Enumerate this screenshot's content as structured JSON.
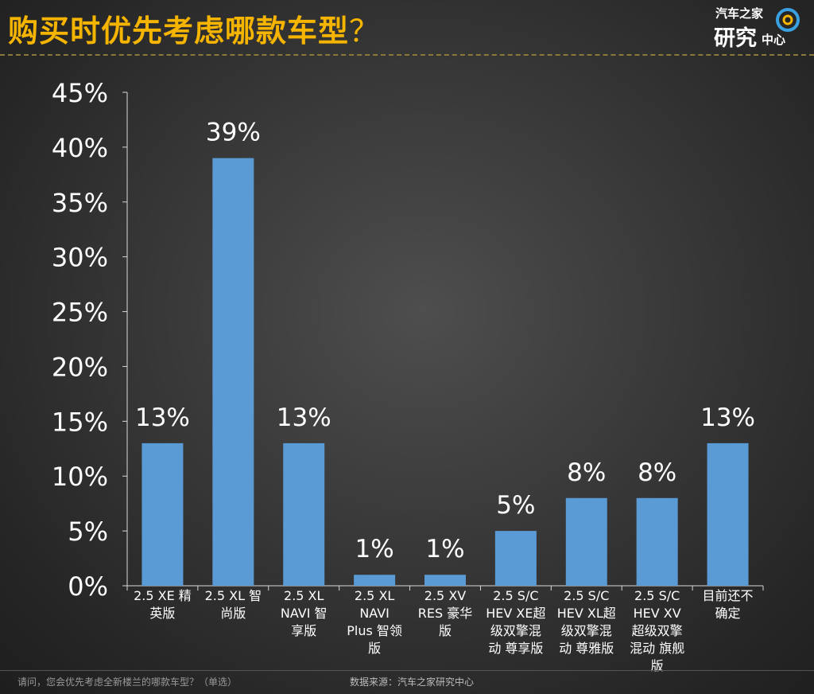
{
  "header": {
    "title": "购买时优先考虑哪款车型",
    "title_mark": "？"
  },
  "logo": {
    "line1": "汽车之家",
    "line2": "研究",
    "line3": "中心"
  },
  "footer": {
    "question": "请问，您会优先考虑全新楼兰的哪款车型？（单选）",
    "source": "数据来源：汽车之家研究中心"
  },
  "colors": {
    "bar": "#5b9bd5",
    "title": "#f5b400",
    "text": "#ffffff"
  },
  "chart_data": {
    "type": "bar",
    "title": "",
    "xlabel": "",
    "ylabel": "",
    "ylim": [
      0,
      45
    ],
    "y_ticks": [
      "0%",
      "5%",
      "10%",
      "15%",
      "20%",
      "25%",
      "30%",
      "35%",
      "40%",
      "45%"
    ],
    "grid": false,
    "categories": [
      [
        "2.5 XE 精",
        "英版"
      ],
      [
        "2.5 XL 智",
        "尚版"
      ],
      [
        "2.5 XL",
        "NAVI 智",
        "享版"
      ],
      [
        "2.5 XL",
        "NAVI",
        "Plus 智领",
        "版"
      ],
      [
        "2.5 XV",
        "RES 豪华",
        "版"
      ],
      [
        "2.5 S/C",
        "HEV XE超",
        "级双擎混",
        "动 尊享版"
      ],
      [
        "2.5 S/C",
        "HEV XL超",
        "级双擎混",
        "动 尊雅版"
      ],
      [
        "2.5 S/C",
        "HEV XV",
        "超级双擎",
        "混动 旗舰",
        "版"
      ],
      [
        "目前还不",
        "确定"
      ]
    ],
    "values": [
      13,
      39,
      13,
      1,
      1,
      5,
      8,
      8,
      13
    ],
    "data_labels": [
      "13%",
      "39%",
      "13%",
      "1%",
      "1%",
      "5%",
      "8%",
      "8%",
      "13%"
    ]
  }
}
